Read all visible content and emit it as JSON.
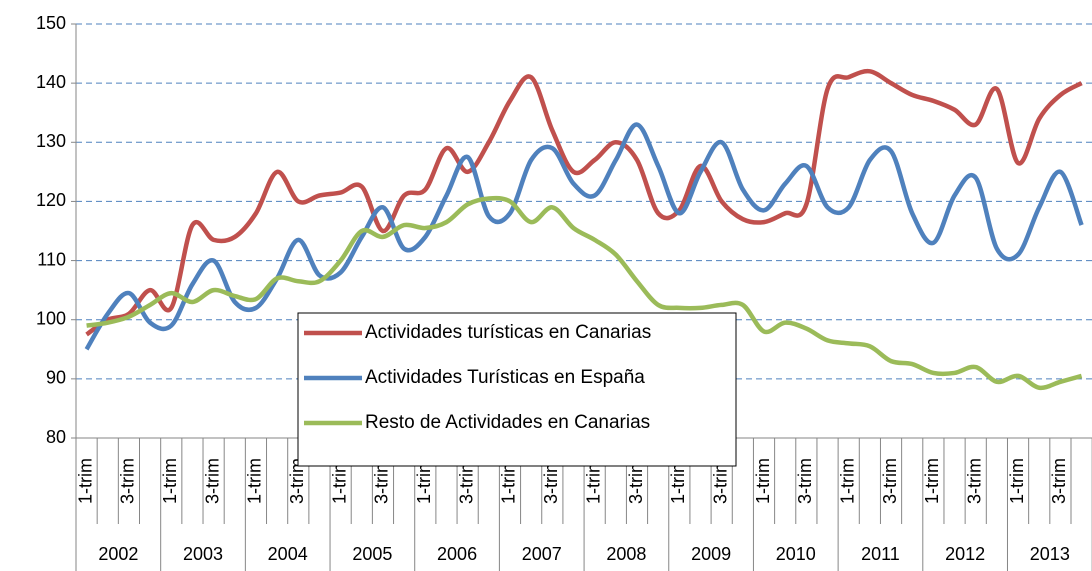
{
  "chart_data": {
    "type": "line",
    "categories": [
      "1-trim",
      null,
      "3-trim",
      null,
      "1-trim",
      null,
      "3-trim",
      null,
      "1-trim",
      null,
      "3-trim",
      null,
      "1-trim",
      null,
      "3-trim",
      null,
      "1-trim",
      null,
      "3-trim",
      null,
      "1-trim",
      null,
      "3-trim",
      null,
      "1-trim",
      null,
      "3-trim",
      null,
      "1-trim",
      null,
      "3-trim",
      null,
      "1-trim",
      null,
      "3-trim",
      null,
      "1-trim",
      null,
      "3-trim",
      null,
      "1-trim",
      null,
      "3-trim",
      null,
      "1-trim",
      null,
      "3-trim",
      null
    ],
    "year_groups": [
      "2002",
      "2003",
      "2004",
      "2005",
      "2006",
      "2007",
      "2008",
      "2009",
      "2010",
      "2011",
      "2012",
      "2013"
    ],
    "ylim": [
      80,
      150
    ],
    "yticks": [
      80,
      90,
      100,
      110,
      120,
      130,
      140,
      150
    ],
    "grid": true,
    "series": [
      {
        "name": "Actividades turísticas en Canarias",
        "color": "#c0504d",
        "values": [
          97.5,
          100,
          101,
          105,
          102,
          116,
          113.5,
          114,
          118,
          125,
          120,
          121,
          121.5,
          122.5,
          115,
          121,
          122,
          129,
          125,
          130,
          137,
          141,
          132,
          125,
          127,
          130,
          127,
          118,
          118.5,
          126,
          120,
          117,
          116.5,
          118,
          119.5,
          139,
          141,
          142,
          140,
          138,
          137,
          135.5,
          133,
          139,
          126.5,
          134,
          138,
          140
        ]
      },
      {
        "name": "Actividades Turísticas en España",
        "color": "#4f81bd",
        "values": [
          95,
          101,
          104.5,
          99.5,
          99,
          106,
          110,
          103,
          102,
          107,
          113.5,
          107.5,
          108,
          114,
          119,
          112,
          114,
          121,
          127.5,
          117.5,
          118,
          127,
          129,
          123,
          121,
          127,
          133,
          126,
          118,
          125,
          130,
          122,
          118.5,
          123,
          126,
          119,
          119,
          127,
          128.5,
          118,
          113,
          121,
          124,
          112,
          111,
          119,
          125,
          116
        ]
      },
      {
        "name": "Resto de Actividades en Canarias",
        "color": "#9bbb59",
        "values": [
          99,
          99.5,
          100.5,
          102.5,
          104.5,
          103,
          105,
          104,
          103.5,
          107,
          106.5,
          106.5,
          110,
          115,
          114,
          116,
          115.5,
          116.5,
          119.5,
          120.5,
          120,
          116.5,
          119,
          115.5,
          113.5,
          111,
          106.5,
          102.5,
          102,
          102,
          102.5,
          102.5,
          98,
          99.5,
          98.5,
          96.5,
          96,
          95.5,
          93,
          92.5,
          91,
          91,
          92,
          89.5,
          90.5,
          88.5,
          89.5,
          90.5
        ]
      }
    ]
  }
}
